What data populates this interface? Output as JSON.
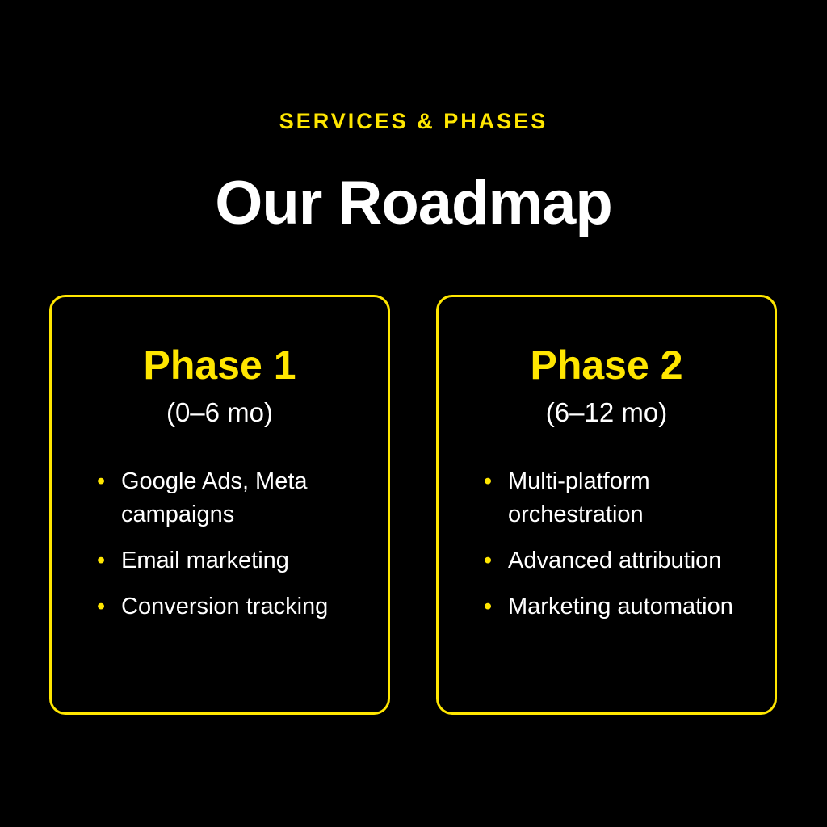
{
  "header": {
    "eyebrow": "SERVICES & PHASES",
    "title": "Our Roadmap"
  },
  "phases": [
    {
      "title": "Phase 1",
      "range": "(0–6 mo)",
      "items": [
        "Google Ads, Meta campaigns",
        "Email marketing",
        "Conversion tracking"
      ]
    },
    {
      "title": "Phase 2",
      "range": "(6–12 mo)",
      "items": [
        "Multi-platform orchestration",
        "Advanced attribution",
        "Marketing automation"
      ]
    }
  ],
  "colors": {
    "background": "#000000",
    "accent": "#FFE600",
    "text": "#FFFFFF"
  },
  "icons": {
    "bullet": "bullet-dot-icon"
  }
}
